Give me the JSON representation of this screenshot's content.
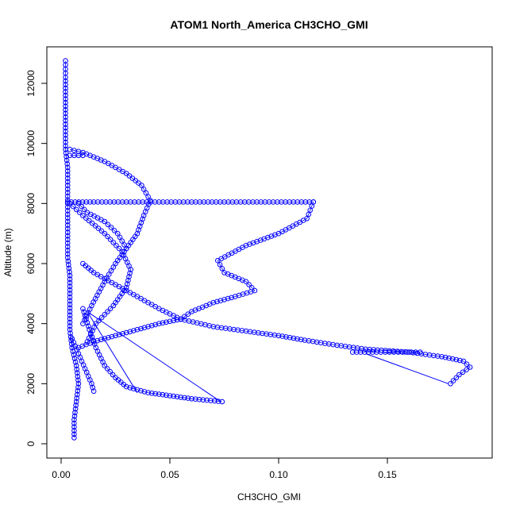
{
  "chart_data": {
    "type": "scatter",
    "title": "ATOM1 North_America CH3CHO_GMI",
    "xlabel": "CH3CHO_GMI",
    "ylabel": "Altitude (m)",
    "xlim": [
      0,
      0.19
    ],
    "ylim": [
      0,
      12800
    ],
    "xticks": [
      0.0,
      0.05,
      0.1,
      0.15
    ],
    "xtick_labels": [
      "0.00",
      "0.05",
      "0.10",
      "0.15"
    ],
    "yticks": [
      0,
      2000,
      4000,
      6000,
      8000,
      10000,
      12000
    ],
    "ytick_labels": [
      "0",
      "2000",
      "4000",
      "6000",
      "8000",
      "10000",
      "12000"
    ],
    "grid": false,
    "legend": "none",
    "marker": "open-circle",
    "color": "#0000ff",
    "series": [
      {
        "points": [
          [
            0.006,
            200
          ],
          [
            0.006,
            800
          ],
          [
            0.007,
            1400
          ],
          [
            0.008,
            2000
          ],
          [
            0.007,
            2600
          ],
          [
            0.005,
            3200
          ],
          [
            0.004,
            3800
          ],
          [
            0.004,
            4400
          ],
          [
            0.004,
            5000
          ],
          [
            0.004,
            5600
          ],
          [
            0.003,
            6200
          ],
          [
            0.003,
            6800
          ],
          [
            0.003,
            7400
          ],
          [
            0.003,
            8000
          ],
          [
            0.003,
            8600
          ],
          [
            0.003,
            9200
          ],
          [
            0.002,
            9800
          ],
          [
            0.002,
            10400
          ],
          [
            0.002,
            11000
          ],
          [
            0.002,
            11600
          ],
          [
            0.002,
            12200
          ],
          [
            0.002,
            12750
          ]
        ]
      },
      {
        "points": [
          [
            0.003,
            8050
          ],
          [
            0.015,
            8050
          ],
          [
            0.03,
            8050
          ],
          [
            0.045,
            8050
          ],
          [
            0.06,
            8050
          ],
          [
            0.075,
            8050
          ],
          [
            0.09,
            8050
          ],
          [
            0.105,
            8050
          ],
          [
            0.116,
            8050
          ]
        ]
      },
      {
        "points": [
          [
            0.116,
            8050
          ],
          [
            0.113,
            7500
          ],
          [
            0.1,
            7000
          ],
          [
            0.085,
            6600
          ],
          [
            0.072,
            6100
          ],
          [
            0.075,
            5700
          ],
          [
            0.085,
            5400
          ],
          [
            0.089,
            5100
          ],
          [
            0.08,
            4900
          ],
          [
            0.07,
            4700
          ],
          [
            0.06,
            4400
          ],
          [
            0.055,
            4150
          ]
        ]
      },
      {
        "points": [
          [
            0.055,
            4150
          ],
          [
            0.045,
            4500
          ],
          [
            0.035,
            4900
          ],
          [
            0.025,
            5300
          ],
          [
            0.015,
            5700
          ],
          [
            0.01,
            6000
          ]
        ]
      },
      {
        "points": [
          [
            0.055,
            4150
          ],
          [
            0.07,
            3900
          ],
          [
            0.085,
            3750
          ],
          [
            0.1,
            3600
          ],
          [
            0.112,
            3450
          ],
          [
            0.125,
            3300
          ],
          [
            0.14,
            3150
          ],
          [
            0.16,
            3050
          ],
          [
            0.175,
            2900
          ],
          [
            0.185,
            2750
          ],
          [
            0.188,
            2550
          ],
          [
            0.183,
            2300
          ],
          [
            0.179,
            2000
          ]
        ]
      },
      {
        "points": [
          [
            0.055,
            4150
          ],
          [
            0.045,
            4000
          ],
          [
            0.035,
            3800
          ],
          [
            0.025,
            3600
          ],
          [
            0.015,
            3400
          ],
          [
            0.008,
            3200
          ]
        ]
      },
      {
        "points": [
          [
            0.134,
            3050
          ],
          [
            0.145,
            3050
          ],
          [
            0.155,
            3050
          ],
          [
            0.165,
            3050
          ]
        ]
      },
      {
        "points": [
          [
            0.004,
            9800
          ],
          [
            0.01,
            9700
          ],
          [
            0.02,
            9400
          ],
          [
            0.03,
            9000
          ],
          [
            0.037,
            8600
          ],
          [
            0.041,
            8100
          ],
          [
            0.038,
            7600
          ],
          [
            0.035,
            7000
          ],
          [
            0.03,
            6500
          ],
          [
            0.025,
            6000
          ],
          [
            0.02,
            5400
          ],
          [
            0.014,
            4600
          ],
          [
            0.01,
            4000
          ]
        ]
      },
      {
        "points": [
          [
            0.004,
            8000
          ],
          [
            0.01,
            7600
          ],
          [
            0.02,
            7000
          ],
          [
            0.028,
            6400
          ],
          [
            0.032,
            5800
          ],
          [
            0.03,
            5200
          ],
          [
            0.024,
            4600
          ],
          [
            0.016,
            4000
          ],
          [
            0.012,
            3400
          ]
        ]
      },
      {
        "points": [
          [
            0.008,
            8000
          ],
          [
            0.012,
            7700
          ],
          [
            0.02,
            7400
          ],
          [
            0.026,
            7000
          ],
          [
            0.03,
            6500
          ]
        ]
      },
      {
        "points": [
          [
            0.01,
            4500
          ],
          [
            0.013,
            3800
          ],
          [
            0.016,
            3200
          ],
          [
            0.02,
            2600
          ],
          [
            0.025,
            2200
          ],
          [
            0.03,
            1900
          ],
          [
            0.04,
            1700
          ],
          [
            0.05,
            1600
          ],
          [
            0.06,
            1500
          ],
          [
            0.074,
            1400
          ]
        ]
      },
      {
        "points": [
          [
            0.005,
            3500
          ],
          [
            0.008,
            3000
          ],
          [
            0.011,
            2500
          ],
          [
            0.014,
            2000
          ],
          [
            0.015,
            1750
          ]
        ]
      },
      {
        "points": [
          [
            0.004,
            9600
          ],
          [
            0.006,
            9600
          ],
          [
            0.008,
            9600
          ],
          [
            0.01,
            9600
          ]
        ]
      }
    ],
    "line_segments": [
      [
        [
          0.012,
          4400
        ],
        [
          0.035,
          1700
        ]
      ],
      [
        [
          0.012,
          4400
        ],
        [
          0.073,
          1420
        ]
      ],
      [
        [
          0.14,
          3000
        ],
        [
          0.178,
          2000
        ]
      ]
    ]
  }
}
